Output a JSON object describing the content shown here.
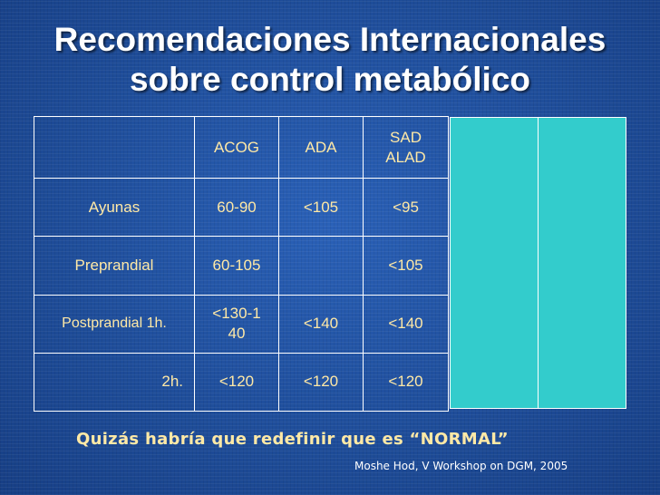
{
  "title": {
    "line1": "Recomendaciones Internacionales",
    "line2": "sobre control metabólico"
  },
  "table": {
    "headers": [
      "",
      "ACOG",
      "ADA",
      "SAD\nALAD"
    ],
    "rows": [
      {
        "label": "Ayunas",
        "acog": "60-90",
        "ada": "<105",
        "sad": "<95"
      },
      {
        "label": "Preprandial",
        "acog": "60-105",
        "ada": "",
        "sad": "<105"
      },
      {
        "label": "Postprandial 1h.",
        "acog": "<130-1\n40",
        "ada": "<140",
        "sad": "<140"
      },
      {
        "label": "2h.",
        "acog": "<120",
        "ada": "<120",
        "sad": "<120"
      }
    ]
  },
  "colors": {
    "background": "#1f4f9c",
    "text": "#ffe9a6",
    "teal_panel": "#33cccc",
    "grid_lines": "#ffffff"
  },
  "note": "Quizás habría que redefinir que es “NORMAL”",
  "source": "Moshe Hod, V Workshop on DGM, 2005"
}
